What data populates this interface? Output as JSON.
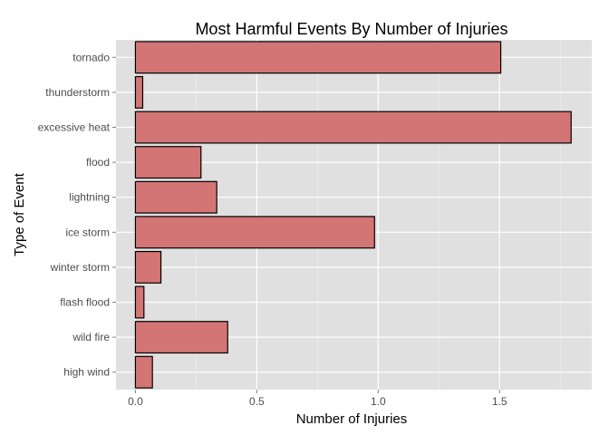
{
  "chart_data": {
    "type": "bar",
    "orientation": "horizontal",
    "title": "Most Harmful Events By Number of Injuries",
    "xlabel": "Number of Injuries",
    "ylabel": "Type of Event",
    "categories": [
      "tornado",
      "thunderstorm",
      "excessive heat",
      "flood",
      "lightning",
      "ice storm",
      "winter storm",
      "flash flood",
      "wild fire",
      "high wind"
    ],
    "values": [
      1.505,
      0.03,
      1.795,
      0.27,
      0.335,
      0.985,
      0.105,
      0.035,
      0.38,
      0.07
    ],
    "xlim": [
      -0.08,
      1.88
    ],
    "xticks": [
      0,
      0.5,
      1,
      1.5
    ],
    "xtick_labels": [
      "0.0",
      "0.5",
      "1.0",
      "1.5"
    ],
    "grid": true,
    "colors": {
      "bar_fill": "#d47575",
      "bar_stroke": "#000000",
      "panel_background": "#e0e0e0",
      "grid_major": "#ffffff"
    }
  }
}
